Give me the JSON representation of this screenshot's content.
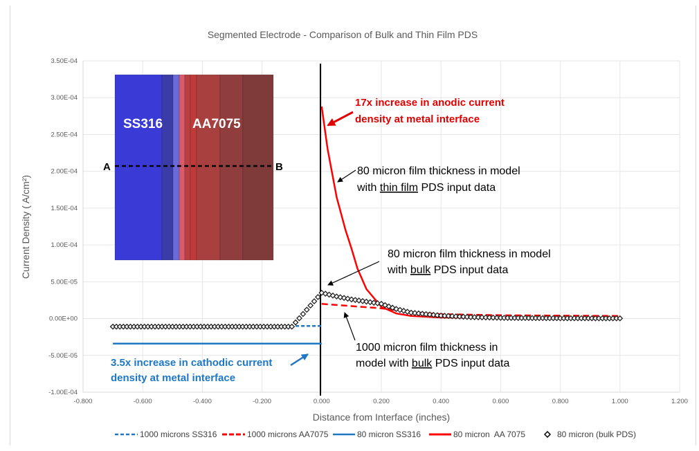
{
  "chart_data": {
    "type": "scatter",
    "title": "Segmented Electrode - Comparison of Bulk and Thin Film PDS",
    "xlabel": "Distance from Interface (inches)",
    "ylabel": "Current Density ( A/cm²)",
    "xlim": [
      -0.8,
      1.2
    ],
    "ylim": [
      -0.0001,
      0.00035
    ],
    "grid": true,
    "legend_position": "bottom",
    "x_ticks": [
      "-0.800",
      "-0.600",
      "-0.400",
      "-0.200",
      "0.000",
      "0.200",
      "0.400",
      "0.600",
      "0.800",
      "1.000",
      "1.200"
    ],
    "y_ticks": [
      "3.50E-04",
      "3.00E-04",
      "2.50E-04",
      "2.00E-04",
      "1.50E-04",
      "1.00E-04",
      "5.00E-05",
      "0.00E+00",
      "-5.00E-05",
      "-1.00E-04"
    ],
    "series": [
      {
        "name": "1000 microns SS316",
        "style": "dashed",
        "color": "#1f77c4",
        "x": [
          -0.7,
          -0.5,
          -0.3,
          -0.1,
          0.0
        ],
        "y": [
          -1e-05,
          -1e-05,
          -1e-05,
          -1e-05,
          -1e-05
        ]
      },
      {
        "name": "1000 microns AA7075",
        "style": "dashed",
        "color": "#ff0000",
        "x": [
          0.0,
          0.1,
          0.2,
          0.3,
          0.4,
          0.6,
          0.8,
          1.0
        ],
        "y": [
          2e-05,
          1.7e-05,
          1.4e-05,
          9e-06,
          6e-06,
          4.5e-06,
          4e-06,
          3.5e-06
        ]
      },
      {
        "name": "80 micron SS316",
        "style": "solid",
        "color": "#1f77c4",
        "x": [
          -0.7,
          -0.5,
          -0.3,
          -0.1,
          0.0
        ],
        "y": [
          -3.4e-05,
          -3.4e-05,
          -3.4e-05,
          -3.4e-05,
          -3.4e-05
        ]
      },
      {
        "name": "80 micron  AA 7075",
        "style": "solid",
        "color": "#ff0000",
        "x": [
          0.0,
          0.02,
          0.05,
          0.08,
          0.1,
          0.12,
          0.15,
          0.2,
          0.25,
          0.3,
          0.4,
          0.6,
          0.8,
          1.0
        ],
        "y": [
          0.000288,
          0.00023,
          0.000165,
          0.00012,
          9.5e-05,
          6.8e-05,
          4e-05,
          1.6e-05,
          7e-06,
          3.5e-06,
          1.5e-06,
          8e-07,
          5e-07,
          4e-07
        ]
      },
      {
        "name": "80 micron (bulk PDS)",
        "style": "markers",
        "marker": "diamond-open",
        "color": "#000000",
        "x": [
          -0.7,
          -0.5,
          -0.3,
          -0.1,
          0.0,
          0.05,
          0.1,
          0.15,
          0.2,
          0.25,
          0.3,
          0.4,
          0.5,
          0.6,
          0.8,
          1.0
        ],
        "y": [
          -1.1e-05,
          -1.1e-05,
          -1.1e-05,
          -1.1e-05,
          3.5e-05,
          3e-05,
          2.6e-05,
          2.3e-05,
          2e-05,
          1.3e-05,
          8e-06,
          4e-06,
          2e-06,
          1e-06,
          5e-07,
          3e-07
        ]
      }
    ],
    "annotations": [
      {
        "text_lines": [
          "17x increase in anodic current",
          "density at metal interface"
        ],
        "color": "#e00000"
      },
      {
        "text_lines": [
          "80 micron film thickness in model",
          "with thin film PDS input data"
        ],
        "underline": "thin film",
        "color": "#000000"
      },
      {
        "text_lines": [
          "80 micron film thickness in model",
          "with bulk PDS input data"
        ],
        "underline": "bulk",
        "color": "#000000"
      },
      {
        "text_lines": [
          "1000 micron film thickness in",
          "model with bulk PDS input data"
        ],
        "underline": "bulk",
        "color": "#000000"
      },
      {
        "text_lines": [
          "3.5x increase in cathodic current",
          "density at metal interface"
        ],
        "color": "#1f77c4"
      }
    ],
    "inset": {
      "labels": [
        "SS316",
        "AA7075"
      ],
      "section_markers": [
        "A",
        "B"
      ],
      "bands": [
        "#3a3ad6",
        "#3c3ca8",
        "#6a6ad8",
        "#d95a6a",
        "#b84040",
        "#c03a3a",
        "#a84040",
        "#7f3a3a"
      ]
    }
  },
  "title": "Segmented Electrode - Comparison of Bulk and Thin Film PDS",
  "axes": {
    "xlabel": "Distance from Interface (inches)",
    "ylabel": "Current Density ( A/cm²)",
    "x_ticks": [
      "-0.800",
      "-0.600",
      "-0.400",
      "-0.200",
      "0.000",
      "0.200",
      "0.400",
      "0.600",
      "0.800",
      "1.000",
      "1.200"
    ],
    "y_ticks": [
      "3.50E-04",
      "3.00E-04",
      "2.50E-04",
      "2.00E-04",
      "1.50E-04",
      "1.00E-04",
      "5.00E-05",
      "0.00E+00",
      "-5.00E-05",
      "-1.00E-04"
    ]
  },
  "legend": {
    "items": [
      "1000 microns SS316",
      "1000 microns AA7075",
      "80 micron SS316",
      "80 micron  AA 7075",
      "80 micron (bulk PDS)"
    ]
  },
  "annotations": {
    "anodic_1": "17x increase in anodic current",
    "anodic_2": "density at metal interface",
    "thin_1": "80 micron film thickness in model",
    "thin_2a": "with ",
    "thin_2u": "thin film",
    "thin_2b": " PDS input data",
    "bulk80_1": "80 micron film thickness in model",
    "bulk80_2a": "with ",
    "bulk80_2u": "bulk",
    "bulk80_2b": " PDS input data",
    "bulk1000_1": "1000 micron film thickness in",
    "bulk1000_2a": "model with ",
    "bulk1000_2u": "bulk",
    "bulk1000_2b": " PDS input data",
    "cathodic_1": "3.5x increase in cathodic current",
    "cathodic_2": "density at metal interface"
  },
  "inset": {
    "label_left": "SS316",
    "label_right": "AA7075",
    "marker_a": "A",
    "marker_b": "B"
  },
  "colors": {
    "red": "#ff0000",
    "annotation_red": "#e00000",
    "blue": "#1f77c4",
    "grid": "#e6e6e6",
    "text": "#595959"
  }
}
